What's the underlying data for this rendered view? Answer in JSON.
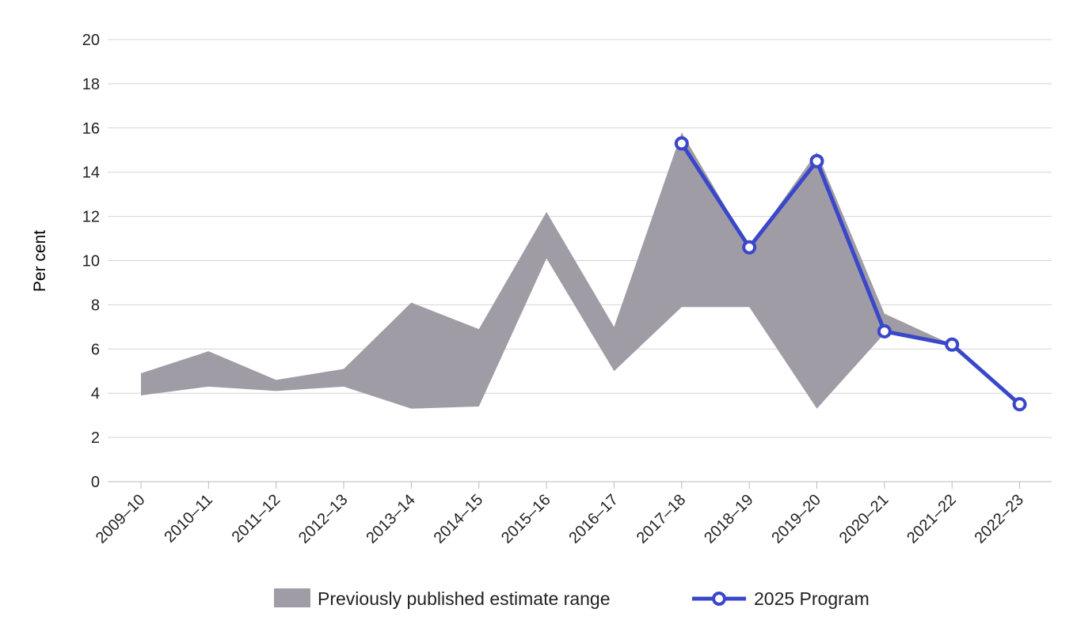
{
  "chart_data": {
    "type": "line",
    "title": "",
    "xlabel": "",
    "ylabel": "Per cent",
    "ylim": [
      0,
      20
    ],
    "yticks": [
      "0",
      "2",
      "4",
      "6",
      "8",
      "10",
      "12",
      "14",
      "16",
      "18",
      "20"
    ],
    "grid": true,
    "legend_position": "bottom",
    "categories": [
      "2009–10",
      "2010–11",
      "2011–12",
      "2012–13",
      "2013–14",
      "2014–15",
      "2015–16",
      "2016–17",
      "2017–18",
      "2018–19",
      "2019–20",
      "2020–21",
      "2021–22",
      "2022–23"
    ],
    "series": [
      {
        "name": "Previously published estimate range",
        "kind": "range",
        "color": "#a09ca6",
        "upper": [
          4.9,
          5.9,
          4.6,
          5.1,
          8.1,
          6.9,
          12.2,
          7.0,
          15.8,
          10.6,
          14.9,
          7.6,
          6.2,
          null
        ],
        "lower": [
          3.9,
          4.3,
          4.1,
          4.3,
          3.3,
          3.4,
          10.1,
          5.0,
          7.9,
          7.9,
          3.3,
          6.7,
          6.2,
          null
        ]
      },
      {
        "name": "2025 Program",
        "kind": "line",
        "color": "#3a47c9",
        "values": [
          null,
          null,
          null,
          null,
          null,
          null,
          null,
          null,
          15.3,
          10.6,
          14.5,
          6.8,
          6.2,
          3.5
        ]
      }
    ]
  }
}
